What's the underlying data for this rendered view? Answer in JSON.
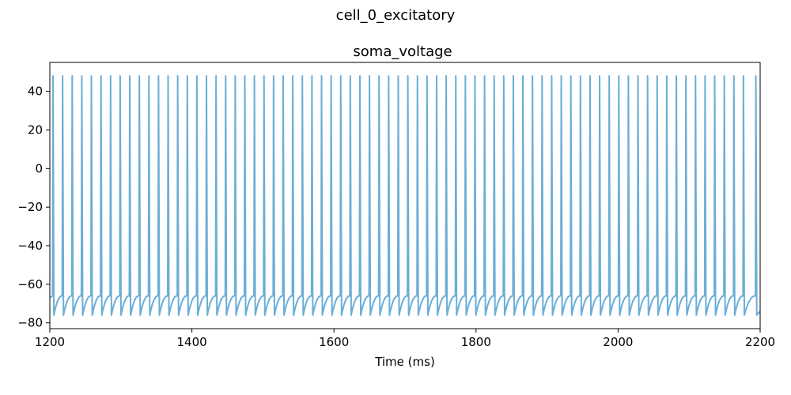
{
  "figure": {
    "suptitle": "cell_0_excitatory"
  },
  "chart_data": {
    "type": "line",
    "title": "soma_voltage",
    "xlabel": "Time (ms)",
    "ylabel": "",
    "xlim": [
      1200,
      2200
    ],
    "ylim": [
      -83,
      55
    ],
    "xticks": [
      1200,
      1400,
      1600,
      1800,
      2000,
      2200
    ],
    "yticks": [
      -80,
      -60,
      -40,
      -20,
      0,
      20,
      40
    ],
    "grid": false,
    "legend": false,
    "line_color": "#6baed6",
    "series": [
      {
        "spike_peak_mV": 48,
        "trough_mV": -76,
        "pre_spike_mV": -66,
        "initial_mV": -67,
        "spike_times_ms": [
          1204.5,
          1218,
          1231.5,
          1245,
          1258.5,
          1272,
          1285.5,
          1299,
          1312.5,
          1326,
          1339.5,
          1353,
          1366.5,
          1380,
          1393.5,
          1407,
          1420.5,
          1434,
          1447.5,
          1461,
          1474.5,
          1488,
          1501.5,
          1515,
          1528.5,
          1542,
          1555.5,
          1569,
          1582.5,
          1596,
          1609.5,
          1623,
          1636.5,
          1650,
          1663.5,
          1677,
          1690.5,
          1704,
          1717.5,
          1731,
          1744.5,
          1758,
          1771.5,
          1785,
          1798.5,
          1812,
          1825.5,
          1839,
          1852.5,
          1866,
          1879.5,
          1893,
          1906.5,
          1920,
          1933.5,
          1947,
          1960.5,
          1974,
          1987.5,
          2001,
          2014.5,
          2028,
          2041.5,
          2055,
          2068.5,
          2082,
          2095.5,
          2109,
          2122.5,
          2136,
          2149.5,
          2163,
          2176.5,
          2194
        ]
      }
    ]
  }
}
